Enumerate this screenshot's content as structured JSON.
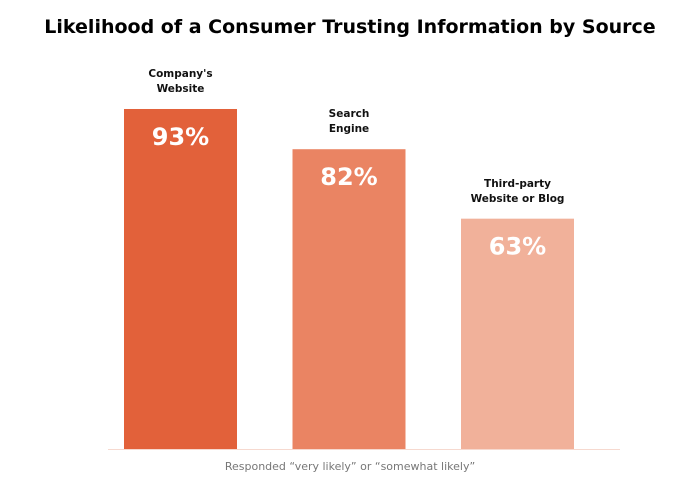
{
  "chart_data": {
    "type": "bar",
    "title": "Likelihood of a Consumer Trusting Information by Source",
    "categories": [
      "Company's\nWebsite",
      "Search\nEngine",
      "Third-party\nWebsite or Blog"
    ],
    "values": [
      93,
      82,
      63
    ],
    "value_labels": [
      "93%",
      "82%",
      "63%"
    ],
    "colors": [
      "#e2613a",
      "#ea8463",
      "#f1b19a"
    ],
    "ylim": [
      0,
      100
    ],
    "note": "Responded “very likely” or “somewhat likely”"
  }
}
